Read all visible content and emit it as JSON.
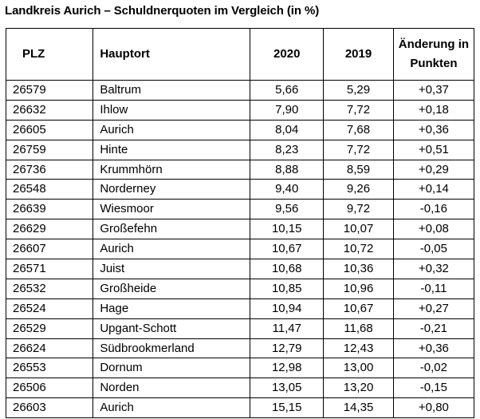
{
  "title": "Landkreis Aurich – Schuldnerquoten im Vergleich (in %)",
  "headers": {
    "plz": "PLZ",
    "hauptort": "Hauptort",
    "y2020": "2020",
    "y2019": "2019",
    "change_line1": "Änderung in",
    "change_line2": "Punkten"
  },
  "rows": [
    {
      "plz": "26579",
      "ort": "Baltrum",
      "v2020": "5,66",
      "v2019": "5,29",
      "change": "+0,37"
    },
    {
      "plz": "26632",
      "ort": "Ihlow",
      "v2020": "7,90",
      "v2019": "7,72",
      "change": "+0,18"
    },
    {
      "plz": "26605",
      "ort": "Aurich",
      "v2020": "8,04",
      "v2019": "7,68",
      "change": "+0,36"
    },
    {
      "plz": "26759",
      "ort": "Hinte",
      "v2020": "8,23",
      "v2019": "7,72",
      "change": "+0,51"
    },
    {
      "plz": "26736",
      "ort": "Krummhörn",
      "v2020": "8,88",
      "v2019": "8,59",
      "change": "+0,29"
    },
    {
      "plz": "26548",
      "ort": "Norderney",
      "v2020": "9,40",
      "v2019": "9,26",
      "change": "+0,14"
    },
    {
      "plz": "26639",
      "ort": "Wiesmoor",
      "v2020": "9,56",
      "v2019": "9,72",
      "change": "-0,16"
    },
    {
      "plz": "26629",
      "ort": "Großefehn",
      "v2020": "10,15",
      "v2019": "10,07",
      "change": "+0,08"
    },
    {
      "plz": "26607",
      "ort": "Aurich",
      "v2020": "10,67",
      "v2019": "10,72",
      "change": "-0,05"
    },
    {
      "plz": "26571",
      "ort": "Juist",
      "v2020": "10,68",
      "v2019": "10,36",
      "change": "+0,32"
    },
    {
      "plz": "26532",
      "ort": "Großheide",
      "v2020": "10,85",
      "v2019": "10,96",
      "change": "-0,11"
    },
    {
      "plz": "26524",
      "ort": "Hage",
      "v2020": "10,94",
      "v2019": "10,67",
      "change": "+0,27"
    },
    {
      "plz": "26529",
      "ort": "Upgant-Schott",
      "v2020": "11,47",
      "v2019": "11,68",
      "change": "-0,21"
    },
    {
      "plz": "26624",
      "ort": "Südbrookmerland",
      "v2020": "12,79",
      "v2019": "12,43",
      "change": "+0,36"
    },
    {
      "plz": "26553",
      "ort": "Dornum",
      "v2020": "12,98",
      "v2019": "13,00",
      "change": "-0,02"
    },
    {
      "plz": "26506",
      "ort": "Norden",
      "v2020": "13,05",
      "v2019": "13,20",
      "change": "-0,15"
    },
    {
      "plz": "26603",
      "ort": "Aurich",
      "v2020": "15,15",
      "v2019": "14,35",
      "change": "+0,80"
    }
  ]
}
